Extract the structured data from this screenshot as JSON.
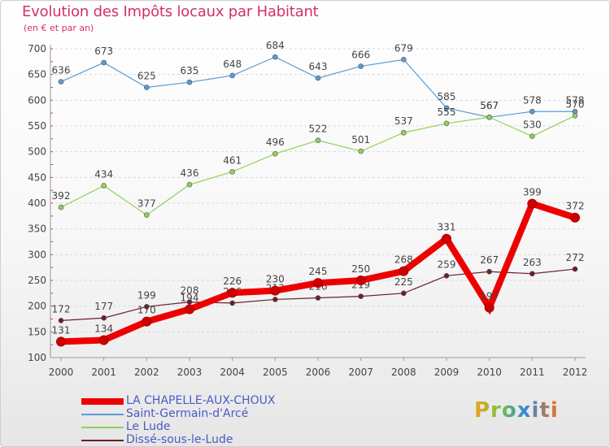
{
  "chart_data": {
    "type": "line",
    "title": "Evolution des Impôts locaux par Habitant",
    "subtitle": "(en € et par an)",
    "xlabel": "",
    "ylabel": "",
    "ylim": [
      100,
      700
    ],
    "yticks": [
      100,
      150,
      200,
      250,
      300,
      350,
      400,
      450,
      500,
      550,
      600,
      650,
      700
    ],
    "grid": true,
    "legend_position": "bottom-left",
    "categories": [
      "2000",
      "2001",
      "2002",
      "2003",
      "2004",
      "2005",
      "2006",
      "2007",
      "2008",
      "2009",
      "2010",
      "2011",
      "2012"
    ],
    "series": [
      {
        "name": "Saint-Germain-d'Arcé",
        "color": "#5a9bd5",
        "values": [
          636,
          673,
          625,
          635,
          648,
          684,
          643,
          666,
          679,
          585,
          567,
          578,
          578
        ]
      },
      {
        "name": "Le Lude",
        "color": "#8fd15a",
        "values": [
          392,
          434,
          377,
          436,
          461,
          496,
          522,
          501,
          537,
          555,
          567,
          530,
          570
        ]
      },
      {
        "name": "Dissé-sous-le-Lude",
        "color": "#6b1f2a",
        "values": [
          172,
          177,
          199,
          208,
          206,
          213,
          216,
          219,
          225,
          259,
          267,
          263,
          272
        ]
      },
      {
        "name": "LA CHAPELLE-AUX-CHOUX",
        "color": "#ee0000",
        "values": [
          131,
          134,
          170,
          194,
          226,
          230,
          245,
          250,
          268,
          331,
          197,
          399,
          372
        ]
      }
    ]
  },
  "legend": {
    "items": [
      {
        "label": "LA CHAPELLE-AUX-CHOUX",
        "color": "#ee0000"
      },
      {
        "label": "Saint-Germain-d'Arcé",
        "color": "#5a9bd5"
      },
      {
        "label": "Le Lude",
        "color": "#8fd15a"
      },
      {
        "label": "Dissé-sous-le-Lude",
        "color": "#6b1f2a"
      }
    ]
  },
  "logo": {
    "text": "Proxiti"
  }
}
